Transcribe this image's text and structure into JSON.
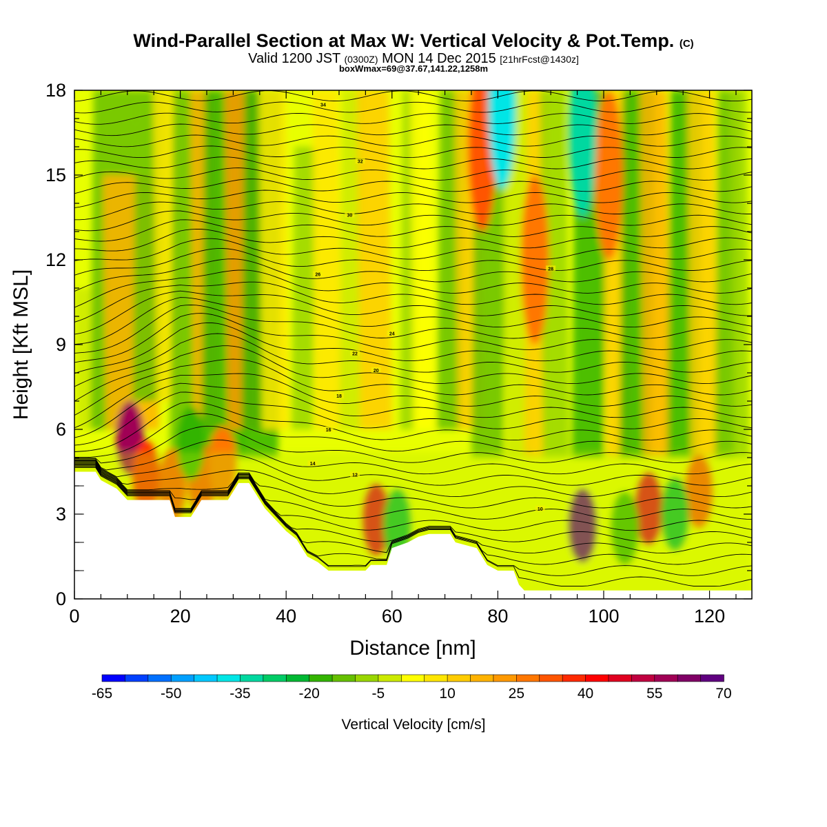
{
  "header": {
    "title_main": "Wind-Parallel Section at Max W: Vertical Velocity & Pot.Temp.",
    "title_mark": "(C)",
    "valid_a": "Valid 1200 JST",
    "valid_b": "(0300Z)",
    "valid_c": "MON 14 Dec 2015",
    "valid_d": "[21hrFcst@1430z]",
    "box_line": "boxWmax=69@37.67,141.22,1258m"
  },
  "chart_data": {
    "type": "heatmap",
    "xlabel": "Distance [nm]",
    "ylabel": "Height [Kft MSL]",
    "xlim": [
      0,
      128
    ],
    "ylim": [
      0,
      18
    ],
    "x_ticks": [
      0,
      20,
      40,
      60,
      80,
      100,
      120
    ],
    "y_ticks": [
      0,
      3,
      6,
      9,
      12,
      15,
      18
    ],
    "x_minor_step": 5,
    "y_minor_step": 1,
    "colorbar": {
      "label": "Vertical Velocity [cm/s]",
      "levels": [
        -65,
        -60,
        -55,
        -50,
        -45,
        -40,
        -35,
        -30,
        -25,
        -20,
        -15,
        -10,
        -5,
        0,
        5,
        10,
        15,
        20,
        25,
        30,
        35,
        40,
        45,
        50,
        55,
        60,
        65,
        70
      ],
      "tick_labels": [
        "-65",
        "-50",
        "-35",
        "-20",
        "-5",
        "10",
        "25",
        "40",
        "55",
        "70"
      ],
      "colors": [
        "#0000ff",
        "#0040ff",
        "#0070ff",
        "#00a0ff",
        "#00c8ff",
        "#00e6e6",
        "#00d8a0",
        "#00cc66",
        "#00b833",
        "#33b400",
        "#66c000",
        "#99d600",
        "#ccea00",
        "#ffff00",
        "#ffe600",
        "#ffcc00",
        "#ffb300",
        "#ff9900",
        "#ff7700",
        "#ff5500",
        "#ff2a00",
        "#ff0000",
        "#e00020",
        "#c00040",
        "#a00055",
        "#800066",
        "#600080"
      ]
    },
    "terrain": [
      [
        0,
        4.5
      ],
      [
        4,
        4.5
      ],
      [
        5,
        4.2
      ],
      [
        8,
        3.9
      ],
      [
        10,
        3.5
      ],
      [
        14,
        3.5
      ],
      [
        18,
        3.5
      ],
      [
        19,
        2.9
      ],
      [
        22,
        2.9
      ],
      [
        24,
        3.5
      ],
      [
        29,
        3.5
      ],
      [
        31,
        4.1
      ],
      [
        33,
        4.1
      ],
      [
        35,
        3.5
      ],
      [
        36,
        3.2
      ],
      [
        38,
        2.8
      ],
      [
        40,
        2.4
      ],
      [
        42,
        2.1
      ],
      [
        44,
        1.5
      ],
      [
        46,
        1.3
      ],
      [
        48,
        1.0
      ],
      [
        55,
        1.0
      ],
      [
        56,
        1.2
      ],
      [
        59,
        1.2
      ],
      [
        60,
        1.8
      ],
      [
        63,
        2.0
      ],
      [
        65,
        2.2
      ],
      [
        67,
        2.3
      ],
      [
        71,
        2.3
      ],
      [
        72,
        2.0
      ],
      [
        76,
        1.8
      ],
      [
        78,
        1.2
      ],
      [
        80,
        1.0
      ],
      [
        83,
        1.0
      ],
      [
        84,
        0.5
      ],
      [
        85,
        0.3
      ],
      [
        128,
        0.3
      ]
    ],
    "updrafts": [
      {
        "x": 10.5,
        "z": 5.7,
        "w": 55
      },
      {
        "x": 13.5,
        "z": 4.3,
        "w": 35
      },
      {
        "x": 18.5,
        "z": 4.0,
        "w": 30
      },
      {
        "x": 24,
        "z": 4.2,
        "w": 30
      },
      {
        "x": 28,
        "z": 4.8,
        "w": 28
      },
      {
        "x": 57,
        "z": 2.8,
        "w": 45
      },
      {
        "x": 96,
        "z": 2.6,
        "w": 70
      },
      {
        "x": 108.5,
        "z": 3.2,
        "w": 45
      },
      {
        "x": 118,
        "z": 3.8,
        "w": 30
      },
      {
        "x": 77,
        "z": 16.0,
        "w": 32
      },
      {
        "x": 101,
        "z": 15.0,
        "w": 28
      },
      {
        "x": 87,
        "z": 12.0,
        "w": 25
      }
    ],
    "downdrafts": [
      {
        "x": 80.8,
        "z": 17.5,
        "w": -40
      },
      {
        "x": 96,
        "z": 16.5,
        "w": -35
      },
      {
        "x": 61,
        "z": 2.6,
        "w": -25
      },
      {
        "x": 113.5,
        "z": 3.0,
        "w": -25
      },
      {
        "x": 104,
        "z": 2.5,
        "w": -20
      },
      {
        "x": 22,
        "z": 5.5,
        "w": -20
      }
    ],
    "isentrope_labels": [
      "10",
      "12",
      "14",
      "16",
      "18",
      "20",
      "22",
      "24",
      "26",
      "28",
      "30",
      "32",
      "34"
    ]
  }
}
